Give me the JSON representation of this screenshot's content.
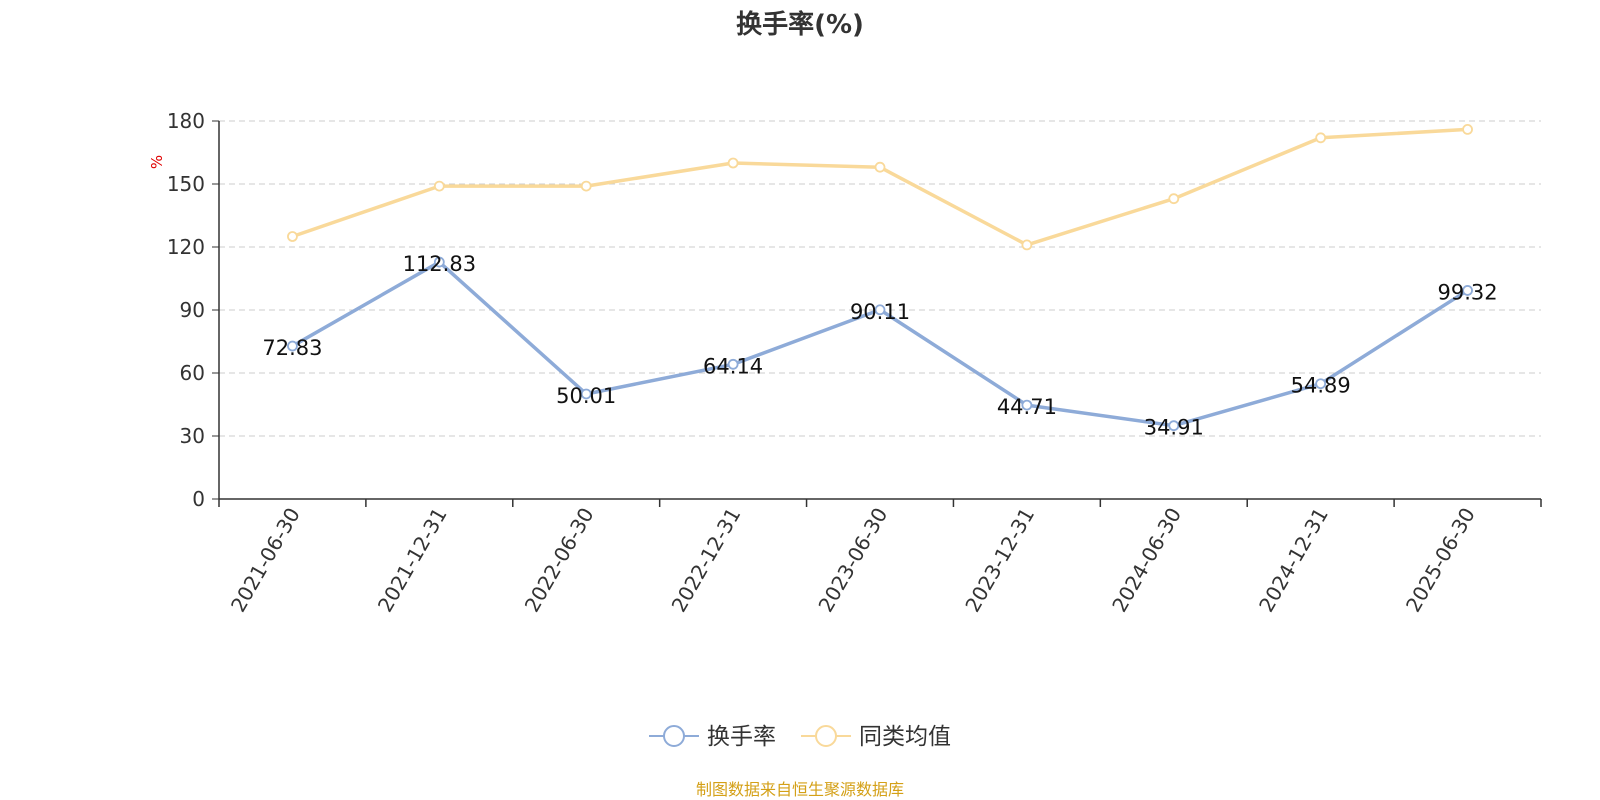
{
  "chart_data": {
    "type": "line",
    "title": "换手率(%)",
    "ylabel": "%",
    "xlabel": "",
    "categories": [
      "2021-06-30",
      "2021-12-31",
      "2022-06-30",
      "2022-12-31",
      "2023-06-30",
      "2023-12-31",
      "2024-06-30",
      "2024-12-31",
      "2025-06-30"
    ],
    "ylim": [
      0,
      180
    ],
    "yticks": [
      0,
      30,
      60,
      90,
      120,
      150,
      180
    ],
    "grid": true,
    "legend_position": "bottom",
    "series": [
      {
        "name": "换手率",
        "color": "#8eabd8",
        "values": [
          72.83,
          112.83,
          50.01,
          64.14,
          90.11,
          44.71,
          34.91,
          54.89,
          99.32
        ],
        "labels": [
          "72.83",
          "112.83",
          "50.01",
          "64.14",
          "90.11",
          "44.71",
          "34.91",
          "54.89",
          "99.32"
        ]
      },
      {
        "name": "同类均值",
        "color": "#f9d99a",
        "values": [
          125,
          149,
          149,
          160,
          158,
          121,
          143,
          172,
          176
        ]
      }
    ]
  },
  "footer": {
    "text": "制图数据来自恒生聚源数据库",
    "color": "#d4a017"
  }
}
